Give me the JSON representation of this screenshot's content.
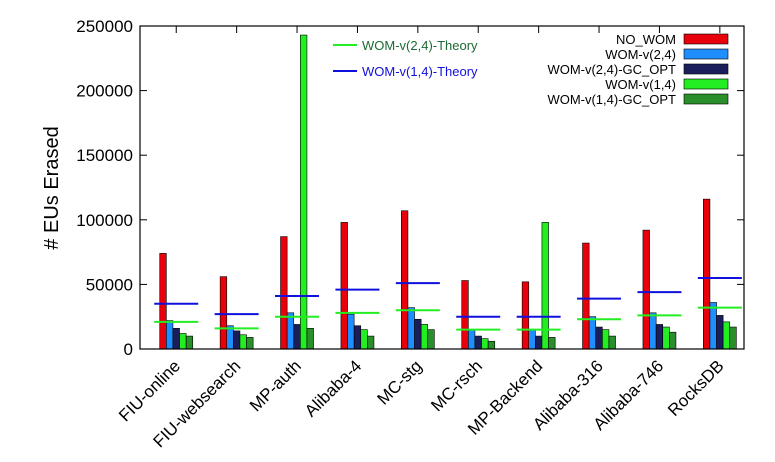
{
  "chart_data": {
    "type": "bar",
    "ylabel": "# EUs Erased",
    "xlabel": "",
    "ylim": [
      0,
      250000
    ],
    "yticks": [
      0,
      50000,
      100000,
      150000,
      200000,
      250000
    ],
    "ytick_labels": [
      "0",
      "50000",
      "100000",
      "150000",
      "200000",
      "250000"
    ],
    "grid": false,
    "legend_position": "top-right",
    "categories": [
      "FIU-online",
      "FIU-websearch",
      "MP-auth",
      "Alibaba-4",
      "MC-stg",
      "MC-rsch",
      "MP-Backend",
      "Alibaba-316",
      "Alibaba-746",
      "RocksDB"
    ],
    "series": [
      {
        "name": "NO_WOM",
        "color": "#e8000b",
        "values": [
          74000,
          56000,
          87000,
          98000,
          107000,
          53000,
          52000,
          82000,
          92000,
          116000
        ]
      },
      {
        "name": "WOM-v(2,4)",
        "color": "#1f8fff",
        "values": [
          22000,
          18000,
          28000,
          27000,
          32000,
          15000,
          15000,
          25000,
          28000,
          36000
        ]
      },
      {
        "name": "WOM-v(2,4)-GC_OPT",
        "color": "#1a1f5c",
        "values": [
          16000,
          14000,
          19000,
          18000,
          23000,
          10000,
          10000,
          17000,
          19000,
          26000
        ]
      },
      {
        "name": "WOM-v(1,4)",
        "color": "#22ee22",
        "values": [
          12000,
          11000,
          243000,
          15000,
          19000,
          8000,
          98000,
          15000,
          17000,
          21000
        ]
      },
      {
        "name": "WOM-v(1,4)-GC_OPT",
        "color": "#2a8f2a",
        "values": [
          10000,
          9000,
          16000,
          10000,
          15000,
          6000,
          9000,
          10000,
          13000,
          17000
        ]
      }
    ],
    "theory_lines": [
      {
        "name": "WOM-v(2,4)-Theory",
        "color": "#22ee22",
        "text_color": "#1b6b32",
        "values": [
          21000,
          16000,
          25000,
          28000,
          30000,
          15000,
          15000,
          23000,
          26000,
          32000
        ]
      },
      {
        "name": "WOM-v(1,4)-Theory",
        "color": "#1010dd",
        "text_color": "#1010dd",
        "values": [
          35000,
          27000,
          41000,
          46000,
          51000,
          25000,
          25000,
          39000,
          44000,
          55000
        ]
      }
    ]
  }
}
